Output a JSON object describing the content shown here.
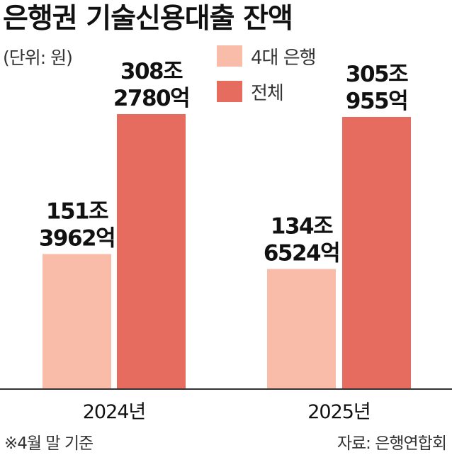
{
  "title": "은행권 기술신용대출 잔액",
  "unit_note": "(단위: 원)",
  "footnote": "※4월 말 기준",
  "source": "자료: 은행연합회",
  "colors": {
    "big4": "#f8bca8",
    "total": "#e66c5f",
    "axis": "#333333"
  },
  "chart_data": {
    "type": "bar",
    "title": "은행권 기술신용대출 잔액",
    "unit": "원",
    "categories": [
      "2024년",
      "2025년"
    ],
    "series": [
      {
        "name": "4대 은행",
        "values": [
          151.3962,
          134.6524
        ],
        "labels": [
          [
            "151조",
            "3962억"
          ],
          [
            "134조",
            "6524억"
          ]
        ]
      },
      {
        "name": "전체",
        "values": [
          308.278,
          305.0955
        ],
        "labels": [
          [
            "308조",
            "2780억"
          ],
          [
            "305조",
            "955억"
          ]
        ]
      }
    ],
    "legend": "top-right",
    "grid": false
  }
}
